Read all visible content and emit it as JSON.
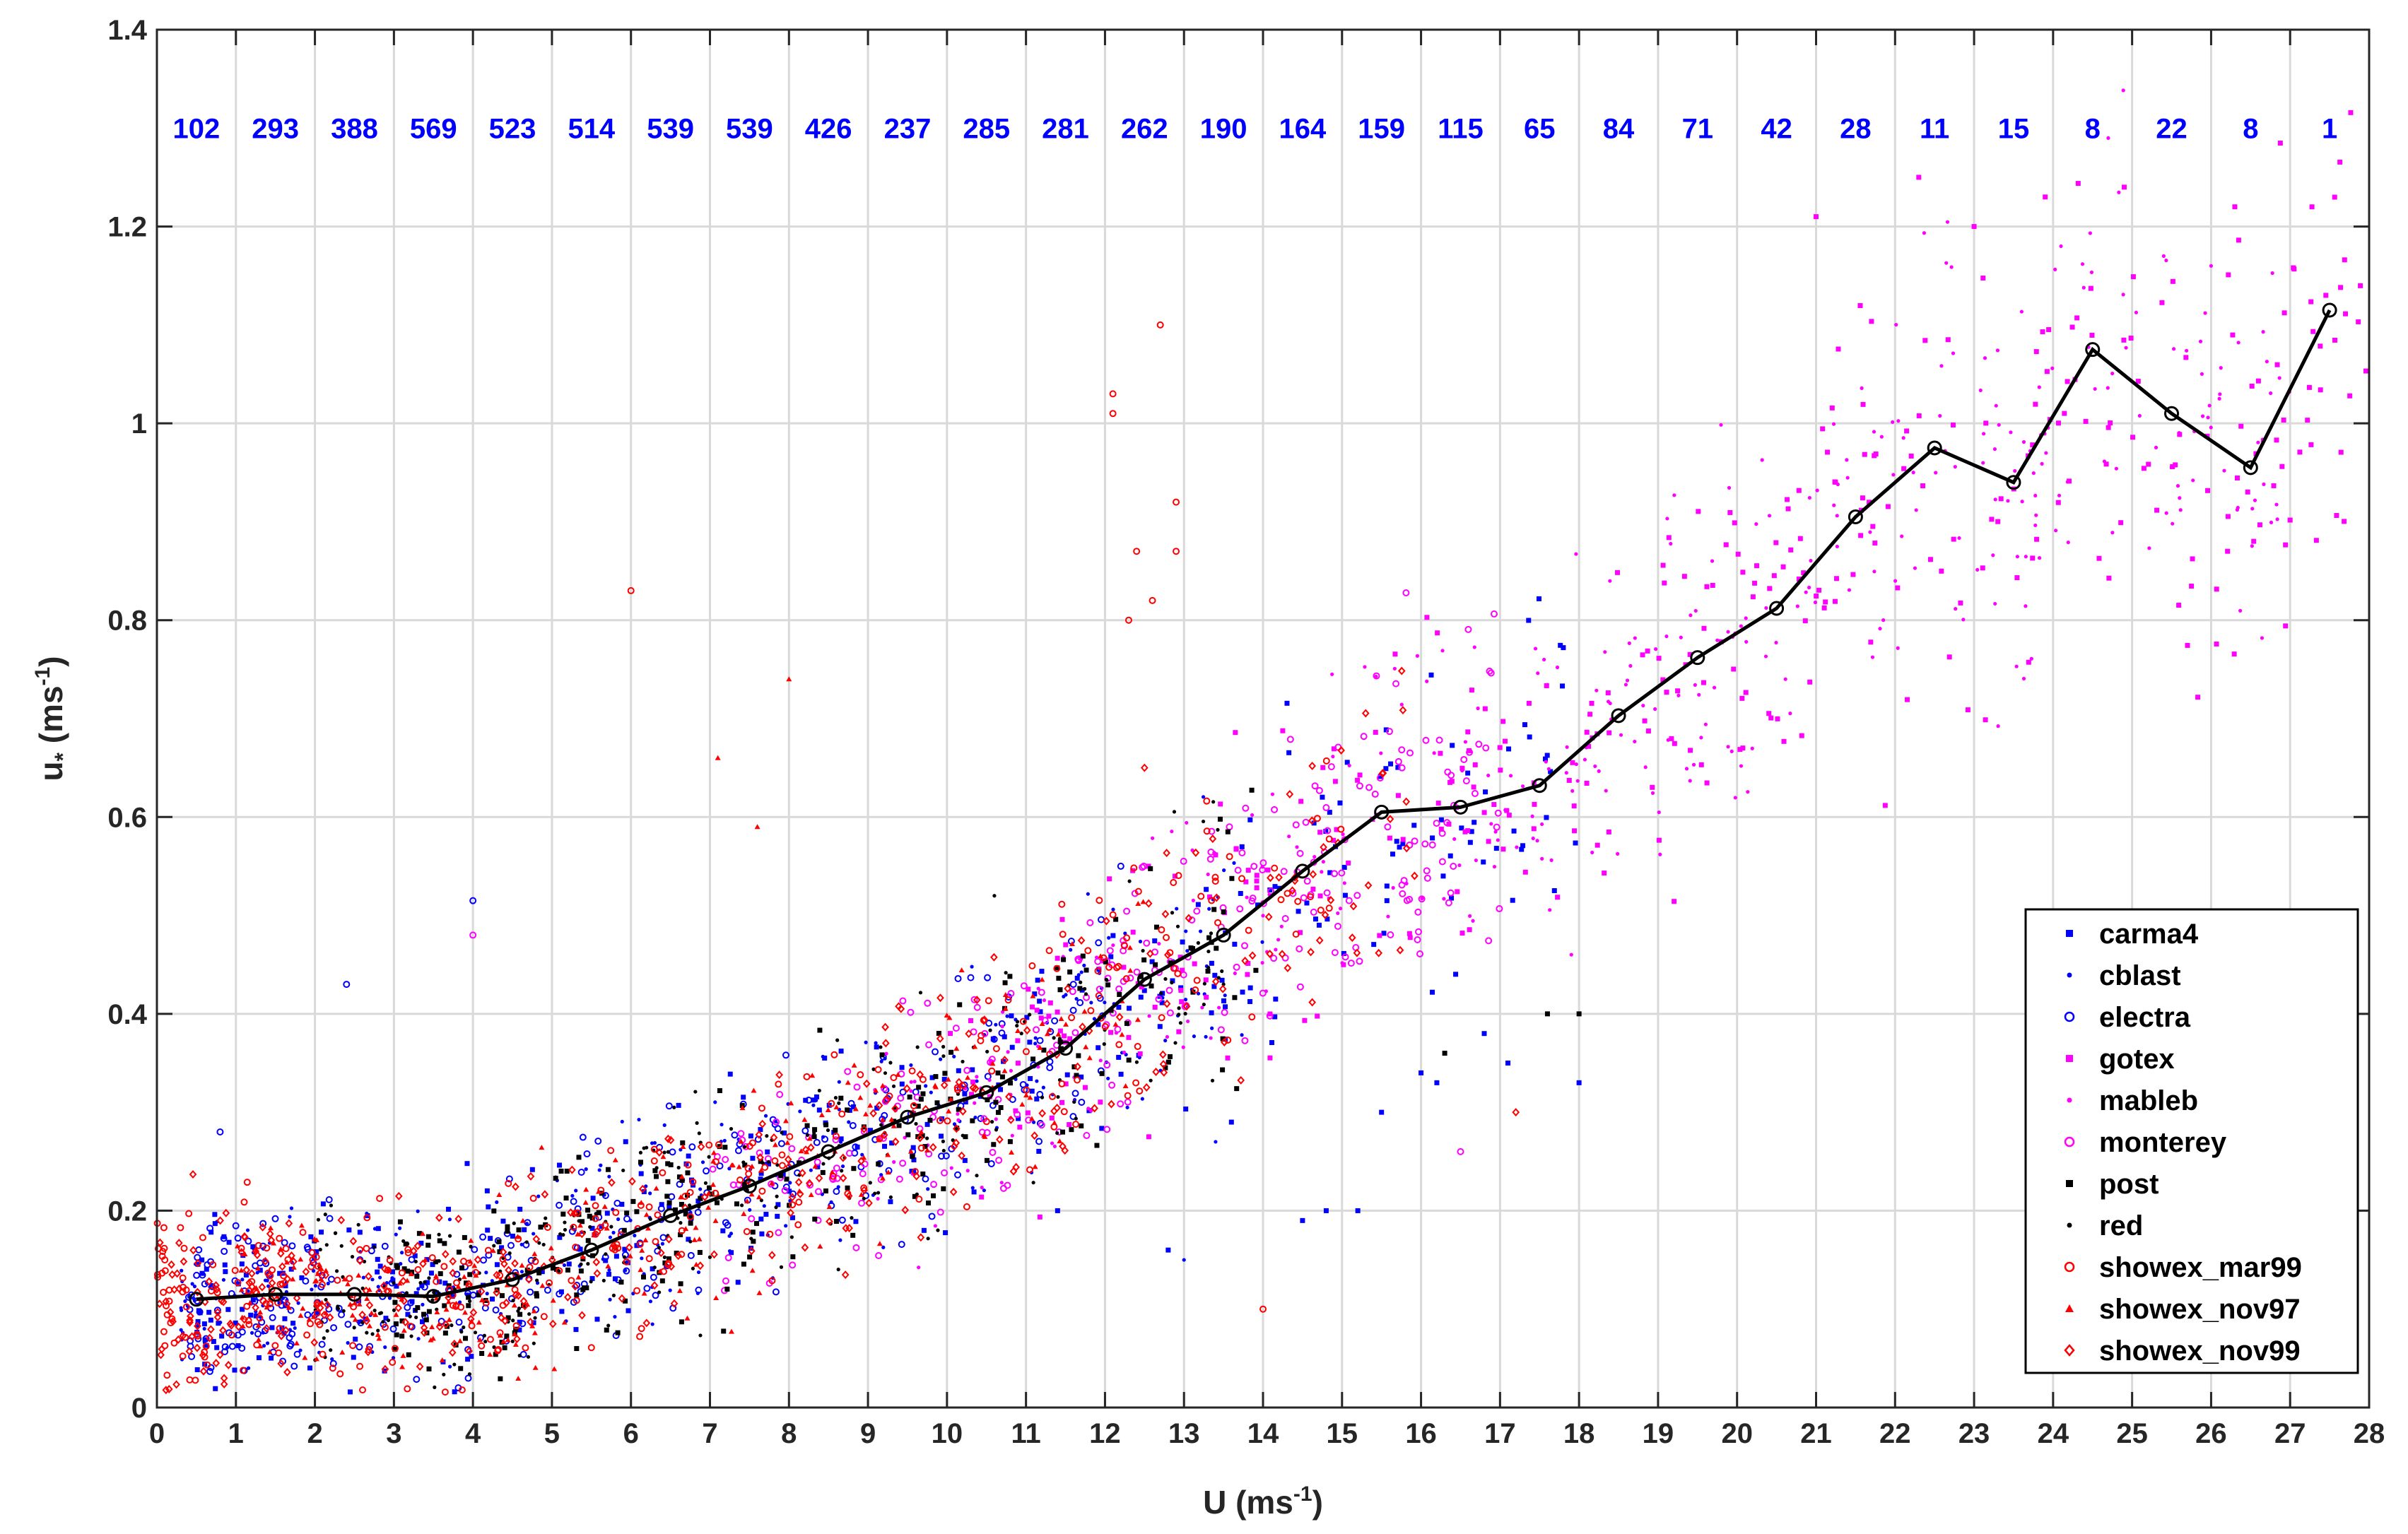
{
  "chart_data": {
    "type": "scatter",
    "xlabel": "U (ms",
    "xlabel_sup": "-1",
    "xlabel_close": ")",
    "ylabel_main": "u",
    "ylabel_sub": "*",
    "ylabel_rest": " (ms",
    "ylabel_sup": "-1",
    "ylabel_close": ")",
    "xlim": [
      0,
      28
    ],
    "ylim": [
      0,
      1.4
    ],
    "xticks": [
      0,
      1,
      2,
      3,
      4,
      5,
      6,
      7,
      8,
      9,
      10,
      11,
      12,
      13,
      14,
      15,
      16,
      17,
      18,
      19,
      20,
      21,
      22,
      23,
      24,
      25,
      26,
      27,
      28
    ],
    "yticks": [
      0,
      0.2,
      0.4,
      0.6,
      0.8,
      1,
      1.2,
      1.4
    ],
    "ytick_labels": [
      "0",
      "0.2",
      "0.4",
      "0.6",
      "0.8",
      "1",
      "1.2",
      "1.4"
    ],
    "grid": true,
    "legend_position": "bottom-right",
    "bin_counts": [
      102,
      293,
      388,
      569,
      523,
      514,
      539,
      539,
      426,
      237,
      285,
      281,
      262,
      190,
      164,
      159,
      115,
      65,
      84,
      71,
      42,
      28,
      11,
      15,
      8,
      22,
      8,
      1
    ],
    "bin_centers": [
      0.5,
      1.5,
      2.5,
      3.5,
      4.5,
      5.5,
      6.5,
      7.5,
      8.5,
      9.5,
      10.5,
      11.5,
      12.5,
      13.5,
      14.5,
      15.5,
      16.5,
      17.5,
      18.5,
      19.5,
      20.5,
      21.5,
      22.5,
      23.5,
      24.5,
      25.5,
      26.5,
      27.5
    ],
    "mean_line": {
      "x": [
        0.5,
        1.5,
        2.5,
        3.5,
        4.5,
        5.5,
        6.5,
        7.5,
        8.5,
        9.5,
        10.5,
        11.5,
        12.5,
        13.5,
        14.5,
        15.5,
        16.5,
        17.5,
        18.5,
        19.5,
        20.5,
        21.5,
        22.5,
        23.5,
        24.5,
        25.5,
        26.5,
        27.5
      ],
      "y": [
        0.11,
        0.115,
        0.115,
        0.113,
        0.13,
        0.16,
        0.195,
        0.225,
        0.26,
        0.295,
        0.32,
        0.365,
        0.435,
        0.48,
        0.545,
        0.605,
        0.61,
        0.632,
        0.703,
        0.762,
        0.812,
        0.905,
        0.975,
        0.94,
        1.075,
        1.01,
        0.955,
        1.115
      ]
    },
    "series": [
      {
        "name": "carma4",
        "color": "#0000ff",
        "marker": "square",
        "range": [
          0.5,
          18
        ],
        "extra": [
          [
            14.5,
            0.19
          ],
          [
            14.8,
            0.2
          ],
          [
            15.2,
            0.2
          ],
          [
            15.5,
            0.3
          ],
          [
            16.0,
            0.34
          ],
          [
            16.2,
            0.33
          ],
          [
            16.8,
            0.38
          ],
          [
            17.1,
            0.35
          ],
          [
            18.0,
            0.33
          ],
          [
            12.8,
            0.16
          ],
          [
            13.6,
            0.29
          ],
          [
            11.4,
            0.2
          ]
        ]
      },
      {
        "name": "cblast",
        "color": "#0000ff",
        "marker": "dot",
        "range": [
          0.3,
          14
        ],
        "extra": [
          [
            13.0,
            0.15
          ],
          [
            13.4,
            0.27
          ]
        ]
      },
      {
        "name": "electra",
        "color": "#0000ff",
        "marker": "circle",
        "range": [
          0.4,
          12
        ],
        "extra": [
          [
            4.0,
            0.515
          ],
          [
            2.4,
            0.43
          ],
          [
            0.8,
            0.28
          ],
          [
            11.6,
            0.43
          ],
          [
            12.2,
            0.55
          ]
        ]
      },
      {
        "name": "gotex",
        "color": "#ff00ff",
        "marker": "square",
        "range": [
          10,
          28
        ],
        "extra": [
          [
            22.3,
            1.25
          ],
          [
            23.9,
            1.23
          ],
          [
            24.9,
            1.24
          ],
          [
            26.3,
            1.22
          ],
          [
            23.0,
            1.2
          ],
          [
            21.0,
            1.21
          ]
        ]
      },
      {
        "name": "mableb",
        "color": "#ff00ff",
        "marker": "dot",
        "range": [
          9,
          27
        ],
        "extra": [
          [
            26.0,
            1.16
          ],
          [
            25.4,
            1.17
          ],
          [
            24.1,
            1.18
          ]
        ]
      },
      {
        "name": "monterey",
        "color": "#ff00ff",
        "marker": "circle",
        "range": [
          7,
          17
        ],
        "extra": [
          [
            4.0,
            0.48
          ],
          [
            16.5,
            0.26
          ]
        ]
      },
      {
        "name": "post",
        "color": "#000000",
        "marker": "square",
        "range": [
          3,
          14
        ],
        "extra": [
          [
            16.3,
            0.36
          ],
          [
            17.6,
            0.4
          ],
          [
            18.0,
            0.4
          ]
        ]
      },
      {
        "name": "red",
        "color": "#000000",
        "marker": "dot",
        "range": [
          2,
          13.5
        ],
        "extra": [
          [
            10.6,
            0.52
          ],
          [
            13.5,
            0.43
          ]
        ]
      },
      {
        "name": "showex_mar99",
        "color": "#ff0000",
        "marker": "circle",
        "range": [
          0,
          15
        ],
        "extra": [
          [
            12.1,
            1.03
          ],
          [
            12.1,
            1.01
          ],
          [
            12.7,
            1.1
          ],
          [
            12.9,
            0.92
          ],
          [
            12.9,
            0.87
          ],
          [
            12.4,
            0.87
          ],
          [
            12.6,
            0.82
          ],
          [
            12.3,
            0.8
          ],
          [
            6.0,
            0.83
          ],
          [
            14.0,
            0.1
          ]
        ]
      },
      {
        "name": "showex_nov97",
        "color": "#ff0000",
        "marker": "triangle",
        "range": [
          1,
          12.5
        ],
        "extra": [
          [
            7.1,
            0.66
          ],
          [
            8.0,
            0.74
          ],
          [
            7.6,
            0.59
          ]
        ]
      },
      {
        "name": "showex_nov99",
        "color": "#ff0000",
        "marker": "diamond",
        "range": [
          0,
          16
        ],
        "extra": [
          [
            17.2,
            0.3
          ],
          [
            12.5,
            0.65
          ]
        ]
      }
    ]
  }
}
